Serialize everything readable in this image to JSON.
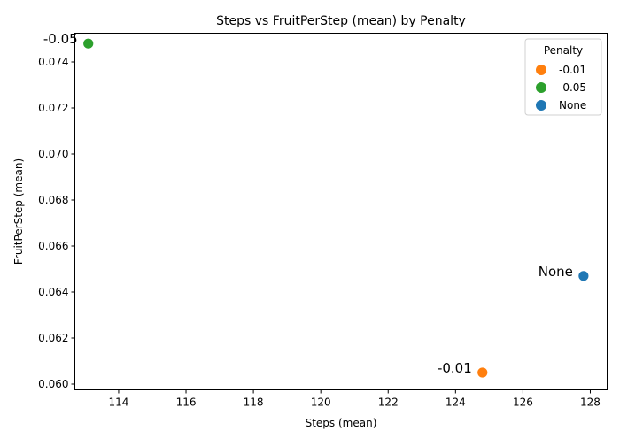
{
  "chart_data": {
    "type": "scatter",
    "title": "Steps vs FruitPerStep (mean) by Penalty",
    "xlabel": "Steps (mean)",
    "ylabel": "FruitPerStep (mean)",
    "xlim": [
      112.7,
      128.5
    ],
    "ylim": [
      0.05975,
      0.07525
    ],
    "xticks": [
      114,
      116,
      118,
      120,
      122,
      124,
      126,
      128
    ],
    "yticks": [
      0.06,
      0.062,
      0.064,
      0.066,
      0.068,
      0.07,
      0.072,
      0.074
    ],
    "grid": false,
    "legend": {
      "title": "Penalty",
      "position": "top-right",
      "entries": [
        {
          "label": "-0.01",
          "color": "#ff7f0e"
        },
        {
          "label": "-0.05",
          "color": "#2ca02c"
        },
        {
          "label": "None",
          "color": "#1f77b4"
        }
      ]
    },
    "points": [
      {
        "x": 124.8,
        "y": 0.0605,
        "label": "-0.01",
        "color": "#ff7f0e"
      },
      {
        "x": 113.1,
        "y": 0.0748,
        "label": "-0.05",
        "color": "#2ca02c"
      },
      {
        "x": 127.8,
        "y": 0.0647,
        "label": "None",
        "color": "#1f77b4"
      }
    ]
  }
}
